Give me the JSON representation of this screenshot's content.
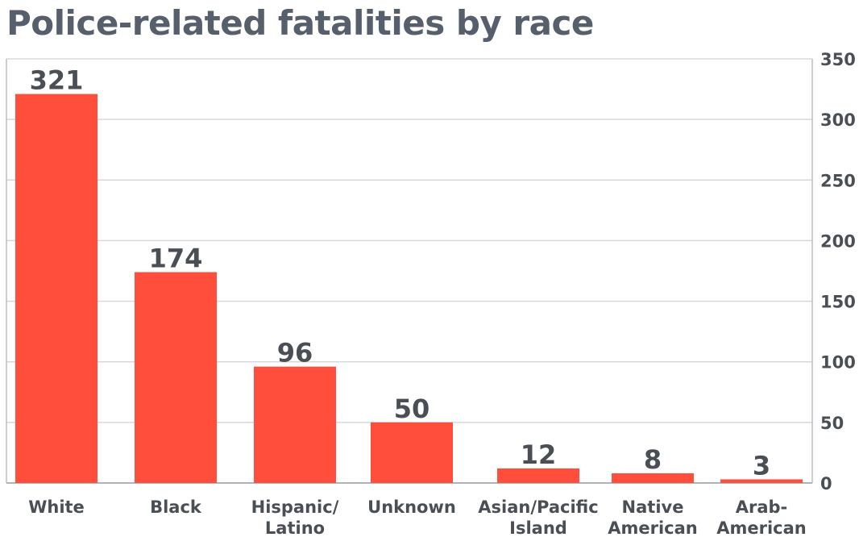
{
  "chart_data": {
    "type": "bar",
    "title": "Police-related fatalities by race",
    "categories": [
      [
        "White"
      ],
      [
        "Black"
      ],
      [
        "Hispanic/",
        "Latino"
      ],
      [
        "Unknown"
      ],
      [
        "Asian/Pacific",
        "Island"
      ],
      [
        "Native",
        "American"
      ],
      [
        "Arab-",
        "American"
      ]
    ],
    "values": [
      321,
      174,
      96,
      50,
      12,
      8,
      3
    ],
    "ylim": [
      0,
      350
    ],
    "yticks": [
      0,
      50,
      100,
      150,
      200,
      250,
      300,
      350
    ],
    "y_axis_side": "right",
    "grid": true,
    "bar_color": "#ff4e3b",
    "grid_color": "#d5d8dc"
  }
}
